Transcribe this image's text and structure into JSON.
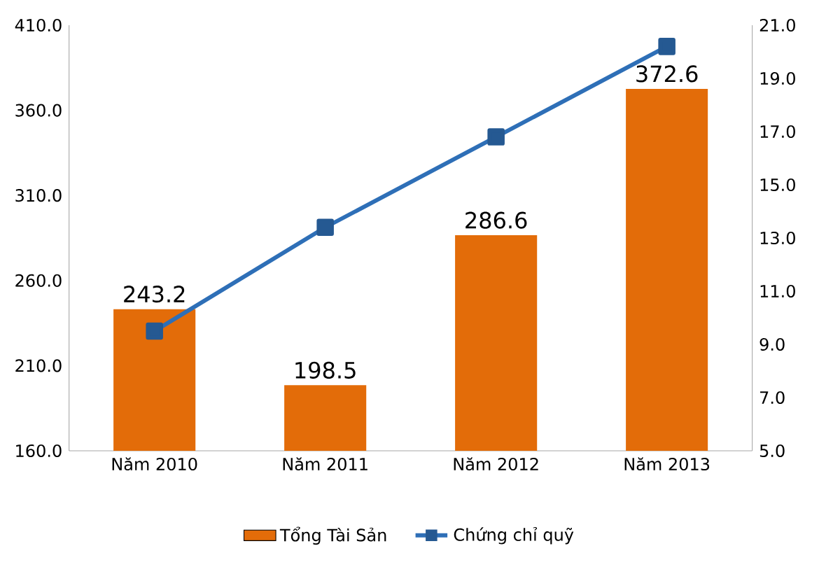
{
  "chart_data": {
    "type": "bar",
    "categories": [
      "Năm 2010",
      "Năm 2011",
      "Năm 2012",
      "Năm 2013"
    ],
    "series": [
      {
        "name": "Tổng Tài Sản",
        "color": "#e36c09",
        "values": [
          243.2,
          198.5,
          286.6,
          372.6
        ],
        "value_labels": [
          "243.2",
          "198.5",
          "286.6",
          "372.6"
        ]
      },
      {
        "name": "Chứng chỉ quỹ",
        "type": "line",
        "axis": "y2",
        "color": "#2e6fb7",
        "values": [
          9.5,
          13.4,
          16.8,
          20.2
        ]
      }
    ],
    "ylim": [
      160,
      410
    ],
    "yticks": [
      {
        "value": 160,
        "label": "160.0"
      },
      {
        "value": 210,
        "label": "210.0"
      },
      {
        "value": 260,
        "label": "260.0"
      },
      {
        "value": 310,
        "label": "310.0"
      },
      {
        "value": 360,
        "label": "360.0"
      },
      {
        "value": 410,
        "label": "410.0"
      }
    ],
    "y2lim": [
      5,
      21
    ],
    "y2ticks": [
      {
        "value": 5,
        "label": "5.0"
      },
      {
        "value": 7,
        "label": "7.0"
      },
      {
        "value": 9,
        "label": "9.0"
      },
      {
        "value": 11,
        "label": "11.0"
      },
      {
        "value": 13,
        "label": "13.0"
      },
      {
        "value": 15,
        "label": "15.0"
      },
      {
        "value": 17,
        "label": "17.0"
      },
      {
        "value": 19,
        "label": "19.0"
      },
      {
        "value": 21,
        "label": "21.0"
      }
    ],
    "marker": "square",
    "line_style": "solid",
    "grid": false,
    "legend": "bottom"
  }
}
